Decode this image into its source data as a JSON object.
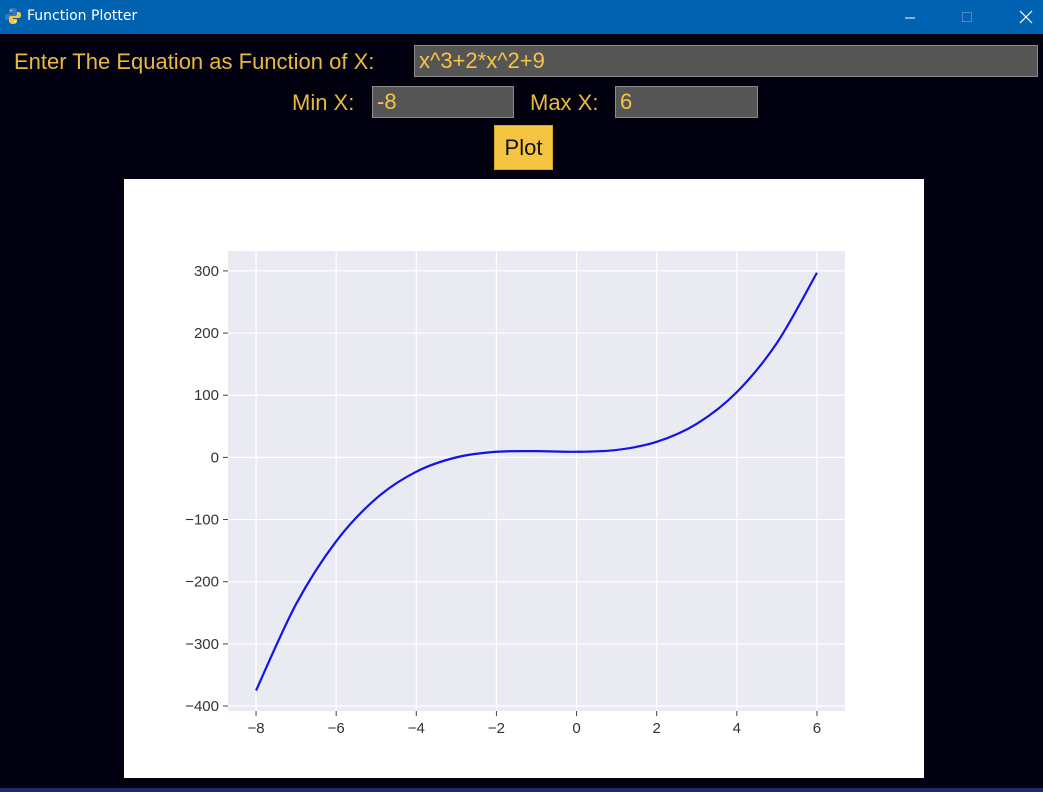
{
  "window": {
    "title": "Function Plotter",
    "icons": {
      "app": "python-icon",
      "minimize": "minimize-icon",
      "maximize": "maximize-icon",
      "close": "close-icon"
    }
  },
  "form": {
    "equation_label": "Enter The Equation as Function of X:",
    "equation_value": "x^3+2*x^2+9",
    "min_label": "Min X:",
    "min_value": "-8",
    "max_label": "Max X:",
    "max_value": "6",
    "plot_label": "Plot"
  },
  "colors": {
    "accent": "#f5c542",
    "label": "#e9b93f",
    "background": "#02010f",
    "titlebar": "#0063b1",
    "plot_bg": "#eaeaf2",
    "line": "#1414e6"
  },
  "chart_data": {
    "type": "line",
    "function": "x^3+2*x^2+9",
    "x_range": [
      -8,
      6
    ],
    "xlim": [
      -8.7,
      6.7
    ],
    "ylim": [
      -408,
      332
    ],
    "xticks": [
      -8,
      -6,
      -4,
      -2,
      0,
      2,
      4,
      6
    ],
    "yticks": [
      -400,
      -300,
      -200,
      -100,
      0,
      100,
      200,
      300
    ],
    "xtick_labels": [
      "−8",
      "−6",
      "−4",
      "−2",
      "0",
      "2",
      "4",
      "6"
    ],
    "ytick_labels": [
      "−400",
      "−300",
      "−200",
      "−100",
      "0",
      "100",
      "200",
      "300"
    ],
    "grid": true,
    "series": [
      {
        "x": [
          -8,
          -7,
          -6,
          -5,
          -4,
          -3,
          -2,
          -1,
          0,
          1,
          2,
          3,
          4,
          5,
          6
        ],
        "y": [
          -375,
          -236,
          -135,
          -66,
          -23,
          0,
          9,
          10,
          9,
          12,
          25,
          54,
          105,
          184,
          297
        ]
      }
    ]
  }
}
